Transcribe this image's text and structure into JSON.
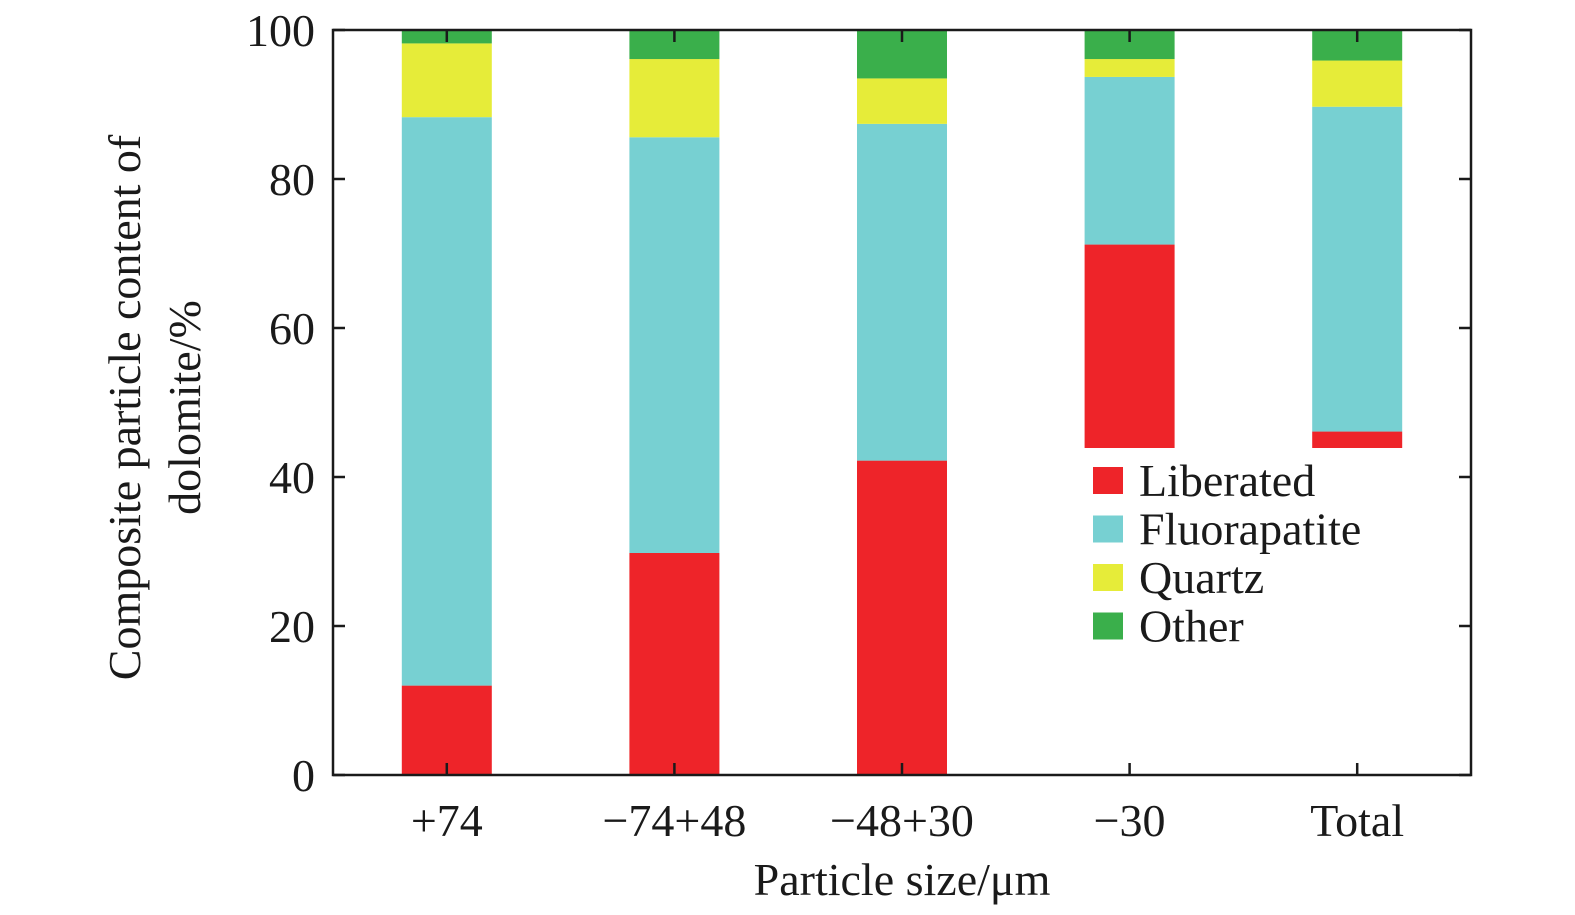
{
  "chart_data": {
    "type": "bar",
    "stacked": true,
    "title": "",
    "xlabel": "Particle size/μm",
    "ylabel_lines": [
      "Composite particle content of",
      "dolomite/%"
    ],
    "ylim": [
      0,
      100
    ],
    "yticks": [
      0,
      20,
      40,
      60,
      80,
      100
    ],
    "categories": [
      "+74",
      "−74+48",
      "−48+30",
      "−30",
      "Total"
    ],
    "series": [
      {
        "name": "Liberated",
        "color": "#ee2429",
        "values": [
          12.0,
          29.8,
          42.2,
          71.2,
          46.1
        ]
      },
      {
        "name": "Fluorapatite",
        "color": "#77d0d2",
        "values": [
          76.3,
          55.8,
          45.2,
          22.5,
          43.6
        ]
      },
      {
        "name": "Quartz",
        "color": "#e6ec39",
        "values": [
          9.9,
          10.5,
          6.1,
          2.4,
          6.2
        ]
      },
      {
        "name": "Other",
        "color": "#3aaf4b",
        "values": [
          1.8,
          3.9,
          6.5,
          3.9,
          4.1
        ]
      }
    ],
    "legend_position": "lower-right",
    "grid": false
  }
}
